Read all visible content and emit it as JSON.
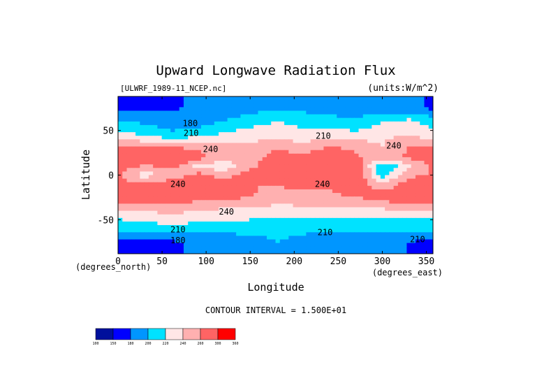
{
  "chart_data": {
    "type": "heatmap",
    "title": "Upward Longwave Radiation Flux",
    "subtitle_left": "[ULWRF_1989-11_NCEP.nc]",
    "subtitle_right": "(units:W/m^2)",
    "xlabel": "Longitude",
    "ylabel": "Latitude",
    "x_units": "(degrees_east)",
    "y_units": "(degrees_north)",
    "xlim": [
      0,
      357.5
    ],
    "ylim": [
      -88,
      88
    ],
    "x_ticks": [
      0,
      50,
      100,
      150,
      200,
      250,
      300,
      350
    ],
    "y_ticks": [
      50,
      0,
      -50
    ],
    "contour_interval_text": "CONTOUR INTERVAL = 1.500E+01",
    "contour_labels": [
      {
        "text": "180",
        "lon": 82,
        "lat": 58
      },
      {
        "text": "210",
        "lon": 83,
        "lat": 47
      },
      {
        "text": "210",
        "lon": 233,
        "lat": 44
      },
      {
        "text": "240",
        "lon": 105,
        "lat": 29
      },
      {
        "text": "240",
        "lon": 313,
        "lat": 33
      },
      {
        "text": "240",
        "lon": 68,
        "lat": -10
      },
      {
        "text": "240",
        "lon": 123,
        "lat": -41
      },
      {
        "text": "210",
        "lon": 68,
        "lat": -61
      },
      {
        "text": "210",
        "lon": 235,
        "lat": -64
      },
      {
        "text": "210",
        "lon": 340,
        "lat": -72
      },
      {
        "text": "180",
        "lon": 68,
        "lat": -73
      },
      {
        "text": "240",
        "lon": 232,
        "lat": -10
      }
    ],
    "rows_lat": [
      75,
      60,
      45,
      30,
      20,
      10,
      0,
      -10,
      -20,
      -30,
      -45,
      -60,
      -75
    ],
    "rows_lon": [
      0,
      30,
      60,
      90,
      120,
      150,
      180,
      210,
      240,
      270,
      300,
      330,
      360
    ],
    "values": [
      [
        172,
        176,
        178,
        182,
        186,
        192,
        196,
        194,
        190,
        188,
        190,
        186,
        176
      ],
      [
        200,
        196,
        186,
        190,
        200,
        212,
        220,
        214,
        208,
        205,
        218,
        226,
        210
      ],
      [
        228,
        218,
        206,
        212,
        224,
        230,
        232,
        226,
        230,
        226,
        238,
        238,
        228
      ],
      [
        268,
        262,
        262,
        258,
        250,
        248,
        258,
        250,
        262,
        258,
        240,
        262,
        268
      ],
      [
        272,
        276,
        292,
        268,
        250,
        252,
        268,
        268,
        270,
        262,
        252,
        264,
        272
      ],
      [
        272,
        256,
        268,
        234,
        228,
        250,
        288,
        284,
        292,
        280,
        200,
        236,
        270
      ],
      [
        262,
        232,
        244,
        268,
        246,
        276,
        284,
        288,
        290,
        284,
        210,
        256,
        262
      ],
      [
        270,
        260,
        276,
        280,
        284,
        260,
        262,
        278,
        268,
        272,
        244,
        270,
        270
      ],
      [
        272,
        268,
        282,
        276,
        292,
        264,
        248,
        252,
        256,
        270,
        268,
        266,
        272
      ],
      [
        262,
        264,
        266,
        258,
        252,
        252,
        244,
        248,
        252,
        252,
        258,
        264,
        262
      ],
      [
        226,
        232,
        236,
        232,
        228,
        226,
        222,
        222,
        226,
        226,
        224,
        226,
        226
      ],
      [
        206,
        210,
        212,
        210,
        208,
        208,
        210,
        208,
        206,
        204,
        206,
        206,
        206
      ],
      [
        172,
        168,
        176,
        184,
        186,
        190,
        200,
        190,
        180,
        186,
        188,
        180,
        172
      ]
    ],
    "colorbar": {
      "colors": [
        "#00109c",
        "#0000ff",
        "#0096ff",
        "#00e2ff",
        "#ffe6e6",
        "#ffb0b0",
        "#ff6464",
        "#ff0000"
      ],
      "levels": [
        100,
        150,
        180,
        200,
        220,
        240,
        260,
        300,
        360
      ],
      "labels": [
        "100",
        "150",
        "180",
        "200",
        "220",
        "240",
        "260",
        "300",
        "360"
      ]
    }
  }
}
